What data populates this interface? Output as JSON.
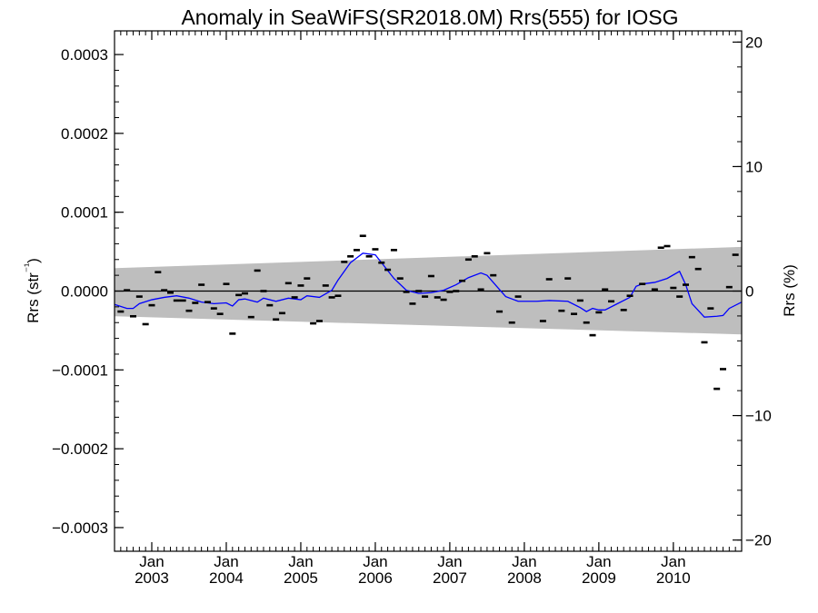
{
  "chart_data": {
    "type": "scatter",
    "title": "Anomaly in SeaWiFS(SR2018.0M) Rrs(555) for IOSG",
    "ylabel_left": "Rrs (str⁻¹)",
    "ylabel_right": "Rrs (%)",
    "ylim_left": [
      -0.00033,
      0.00033
    ],
    "ylim_right": [
      -20.9,
      20.9
    ],
    "xlim": [
      "2002-07",
      "2010-12"
    ],
    "yticks_left": [
      {
        "value": 0.0003,
        "label": "0.0003"
      },
      {
        "value": 0.0002,
        "label": "0.0002"
      },
      {
        "value": 0.0001,
        "label": "0.0001"
      },
      {
        "value": 0.0,
        "label": "0.0000"
      },
      {
        "value": -0.0001,
        "label": "−0.0001"
      },
      {
        "value": -0.0002,
        "label": "−0.0002"
      },
      {
        "value": -0.0003,
        "label": "−0.0003"
      }
    ],
    "yticks_right": [
      {
        "value": 20,
        "label": "20"
      },
      {
        "value": 10,
        "label": "10"
      },
      {
        "value": 0,
        "label": "0"
      },
      {
        "value": -10,
        "label": "−10"
      },
      {
        "value": -20,
        "label": "−20"
      }
    ],
    "xticks": [
      {
        "value": "2003-01",
        "month": "Jan",
        "year": "2003"
      },
      {
        "value": "2004-01",
        "month": "Jan",
        "year": "2004"
      },
      {
        "value": "2005-01",
        "month": "Jan",
        "year": "2005"
      },
      {
        "value": "2006-01",
        "month": "Jan",
        "year": "2006"
      },
      {
        "value": "2007-01",
        "month": "Jan",
        "year": "2007"
      },
      {
        "value": "2008-01",
        "month": "Jan",
        "year": "2008"
      },
      {
        "value": "2009-01",
        "month": "Jan",
        "year": "2009"
      },
      {
        "value": "2010-01",
        "month": "Jan",
        "year": "2010"
      }
    ],
    "band": {
      "start": "2002-07",
      "end": "2010-12",
      "upper": [
        2.9e-05,
        5.6e-05
      ],
      "lower": [
        -3.2e-05,
        -5.5e-05
      ],
      "color": "#bebebe"
    },
    "zero_line": 0.0,
    "monthly_anomalies": {
      "color": "#000000",
      "points": [
        {
          "x": "2002-08",
          "y": -2.6e-05
        },
        {
          "x": "2002-09",
          "y": 1e-06
        },
        {
          "x": "2002-10",
          "y": -3.2e-05
        },
        {
          "x": "2002-11",
          "y": -7e-06
        },
        {
          "x": "2002-12",
          "y": -4.2e-05
        },
        {
          "x": "2003-01",
          "y": -1.8e-05
        },
        {
          "x": "2003-02",
          "y": 2.4e-05
        },
        {
          "x": "2003-03",
          "y": 1e-06
        },
        {
          "x": "2003-04",
          "y": -2e-06
        },
        {
          "x": "2003-05",
          "y": -1.2e-05
        },
        {
          "x": "2003-06",
          "y": -1.2e-05
        },
        {
          "x": "2003-07",
          "y": -2.5e-05
        },
        {
          "x": "2003-08",
          "y": -1.5e-05
        },
        {
          "x": "2003-09",
          "y": 8e-06
        },
        {
          "x": "2003-10",
          "y": -1.4e-05
        },
        {
          "x": "2003-11",
          "y": -2.2e-05
        },
        {
          "x": "2003-12",
          "y": -2.9e-05
        },
        {
          "x": "2004-01",
          "y": 9e-06
        },
        {
          "x": "2004-02",
          "y": -5.4e-05
        },
        {
          "x": "2004-03",
          "y": -5e-06
        },
        {
          "x": "2004-04",
          "y": -3e-06
        },
        {
          "x": "2004-05",
          "y": -3.3e-05
        },
        {
          "x": "2004-06",
          "y": 2.6e-05
        },
        {
          "x": "2004-07",
          "y": 0.0
        },
        {
          "x": "2004-08",
          "y": -1.8e-05
        },
        {
          "x": "2004-09",
          "y": -3.6e-05
        },
        {
          "x": "2004-10",
          "y": -2.8e-05
        },
        {
          "x": "2004-11",
          "y": 1e-05
        },
        {
          "x": "2004-12",
          "y": -8e-06
        },
        {
          "x": "2005-01",
          "y": 7e-06
        },
        {
          "x": "2005-02",
          "y": 1.6e-05
        },
        {
          "x": "2005-03",
          "y": -4.1e-05
        },
        {
          "x": "2005-04",
          "y": -3.8e-05
        },
        {
          "x": "2005-05",
          "y": 7e-06
        },
        {
          "x": "2005-06",
          "y": -8e-06
        },
        {
          "x": "2005-07",
          "y": -6e-06
        },
        {
          "x": "2005-08",
          "y": 3.7e-05
        },
        {
          "x": "2005-09",
          "y": 4.4e-05
        },
        {
          "x": "2005-10",
          "y": 5.2e-05
        },
        {
          "x": "2005-11",
          "y": 7e-05
        },
        {
          "x": "2005-12",
          "y": 4.4e-05
        },
        {
          "x": "2006-01",
          "y": 5.3e-05
        },
        {
          "x": "2006-02",
          "y": 3.6e-05
        },
        {
          "x": "2006-03",
          "y": 2.7e-05
        },
        {
          "x": "2006-04",
          "y": 5.2e-05
        },
        {
          "x": "2006-05",
          "y": 1.6e-05
        },
        {
          "x": "2006-06",
          "y": -1e-06
        },
        {
          "x": "2006-07",
          "y": -1.6e-05
        },
        {
          "x": "2006-08",
          "y": 0.0
        },
        {
          "x": "2006-09",
          "y": -7e-06
        },
        {
          "x": "2006-10",
          "y": 1.9e-05
        },
        {
          "x": "2006-11",
          "y": -8e-06
        },
        {
          "x": "2006-12",
          "y": -1.1e-05
        },
        {
          "x": "2007-01",
          "y": -1e-06
        },
        {
          "x": "2007-02",
          "y": 0.0
        },
        {
          "x": "2007-03",
          "y": 1.3e-05
        },
        {
          "x": "2007-04",
          "y": 4e-05
        },
        {
          "x": "2007-05",
          "y": 4.4e-05
        },
        {
          "x": "2007-06",
          "y": 2e-06
        },
        {
          "x": "2007-07",
          "y": 4.8e-05
        },
        {
          "x": "2007-08",
          "y": 2e-05
        },
        {
          "x": "2007-09",
          "y": -2.6e-05
        },
        {
          "x": "2007-11",
          "y": -4e-05
        },
        {
          "x": "2007-12",
          "y": -7e-06
        },
        {
          "x": "2008-04",
          "y": -3.8e-05
        },
        {
          "x": "2008-05",
          "y": 1.5e-05
        },
        {
          "x": "2008-07",
          "y": -2.5e-05
        },
        {
          "x": "2008-08",
          "y": 1.6e-05
        },
        {
          "x": "2008-09",
          "y": -2.9e-05
        },
        {
          "x": "2008-10",
          "y": -1.2e-05
        },
        {
          "x": "2008-11",
          "y": -4e-05
        },
        {
          "x": "2008-12",
          "y": -5.6e-05
        },
        {
          "x": "2009-01",
          "y": -2.7e-05
        },
        {
          "x": "2009-02",
          "y": 2e-06
        },
        {
          "x": "2009-03",
          "y": -1.3e-05
        },
        {
          "x": "2009-05",
          "y": -2.4e-05
        },
        {
          "x": "2009-06",
          "y": -6e-06
        },
        {
          "x": "2009-08",
          "y": 9e-06
        },
        {
          "x": "2009-10",
          "y": 2e-06
        },
        {
          "x": "2009-11",
          "y": 5.5e-05
        },
        {
          "x": "2009-12",
          "y": 5.7e-05
        },
        {
          "x": "2010-01",
          "y": 4e-06
        },
        {
          "x": "2010-02",
          "y": -7e-06
        },
        {
          "x": "2010-03",
          "y": 8e-06
        },
        {
          "x": "2010-04",
          "y": 4.3e-05
        },
        {
          "x": "2010-05",
          "y": 2.8e-05
        },
        {
          "x": "2010-06",
          "y": -6.5e-05
        },
        {
          "x": "2010-07",
          "y": -2.2e-05
        },
        {
          "x": "2010-08",
          "y": -0.000124
        },
        {
          "x": "2010-09",
          "y": -9.9e-05
        },
        {
          "x": "2010-10",
          "y": 5e-06
        },
        {
          "x": "2010-11",
          "y": 4.6e-05
        }
      ]
    },
    "running_mean": {
      "color": "#0000ff",
      "points": [
        {
          "x": "2002-07",
          "y": -1.7e-05
        },
        {
          "x": "2002-09",
          "y": -2.2e-05
        },
        {
          "x": "2002-10",
          "y": -2.2e-05
        },
        {
          "x": "2002-11",
          "y": -1.6e-05
        },
        {
          "x": "2003-01",
          "y": -1.1e-05
        },
        {
          "x": "2003-03",
          "y": -8e-06
        },
        {
          "x": "2003-05",
          "y": -6e-06
        },
        {
          "x": "2003-07",
          "y": -9e-06
        },
        {
          "x": "2003-09",
          "y": -1.4e-05
        },
        {
          "x": "2003-11",
          "y": -1.6e-05
        },
        {
          "x": "2004-01",
          "y": -1.5e-05
        },
        {
          "x": "2004-02",
          "y": -1.9e-05
        },
        {
          "x": "2004-03",
          "y": -1.1e-05
        },
        {
          "x": "2004-04",
          "y": -1e-05
        },
        {
          "x": "2004-06",
          "y": -1.4e-05
        },
        {
          "x": "2004-07",
          "y": -9e-06
        },
        {
          "x": "2004-09",
          "y": -1.3e-05
        },
        {
          "x": "2004-11",
          "y": -9e-06
        },
        {
          "x": "2005-01",
          "y": -1.1e-05
        },
        {
          "x": "2005-02",
          "y": -6e-06
        },
        {
          "x": "2005-04",
          "y": -8e-06
        },
        {
          "x": "2005-06",
          "y": 1e-06
        },
        {
          "x": "2005-07",
          "y": 1.4e-05
        },
        {
          "x": "2005-09",
          "y": 3.6e-05
        },
        {
          "x": "2005-11",
          "y": 4.8e-05
        },
        {
          "x": "2006-01",
          "y": 4.6e-05
        },
        {
          "x": "2006-02",
          "y": 3.6e-05
        },
        {
          "x": "2006-04",
          "y": 1.6e-05
        },
        {
          "x": "2006-06",
          "y": 1e-06
        },
        {
          "x": "2006-08",
          "y": -3e-06
        },
        {
          "x": "2006-10",
          "y": -2e-06
        },
        {
          "x": "2006-12",
          "y": 1e-06
        },
        {
          "x": "2007-02",
          "y": 8e-06
        },
        {
          "x": "2007-04",
          "y": 1.7e-05
        },
        {
          "x": "2007-06",
          "y": 2.3e-05
        },
        {
          "x": "2007-07",
          "y": 2e-05
        },
        {
          "x": "2007-09",
          "y": 2e-06
        },
        {
          "x": "2007-10",
          "y": -7e-06
        },
        {
          "x": "2007-12",
          "y": -1.3e-05
        },
        {
          "x": "2008-03",
          "y": -1.3e-05
        },
        {
          "x": "2008-05",
          "y": -1.2e-05
        },
        {
          "x": "2008-08",
          "y": -1.3e-05
        },
        {
          "x": "2008-10",
          "y": -2.1e-05
        },
        {
          "x": "2008-11",
          "y": -2.6e-05
        },
        {
          "x": "2008-12",
          "y": -2.2e-05
        },
        {
          "x": "2009-01",
          "y": -2.4e-05
        },
        {
          "x": "2009-02",
          "y": -2.4e-05
        },
        {
          "x": "2009-04",
          "y": -1.6e-05
        },
        {
          "x": "2009-06",
          "y": -8e-06
        },
        {
          "x": "2009-07",
          "y": 6e-06
        },
        {
          "x": "2009-08",
          "y": 9e-06
        },
        {
          "x": "2009-10",
          "y": 1.1e-05
        },
        {
          "x": "2009-12",
          "y": 1.6e-05
        },
        {
          "x": "2010-02",
          "y": 2.5e-05
        },
        {
          "x": "2010-03",
          "y": 8e-06
        },
        {
          "x": "2010-04",
          "y": -1.6e-05
        },
        {
          "x": "2010-06",
          "y": -3.3e-05
        },
        {
          "x": "2010-08",
          "y": -3.2e-05
        },
        {
          "x": "2010-09",
          "y": -3.1e-05
        },
        {
          "x": "2010-10",
          "y": -2.2e-05
        },
        {
          "x": "2010-12",
          "y": -1.4e-05
        }
      ]
    },
    "grid": false,
    "legend": "none"
  }
}
